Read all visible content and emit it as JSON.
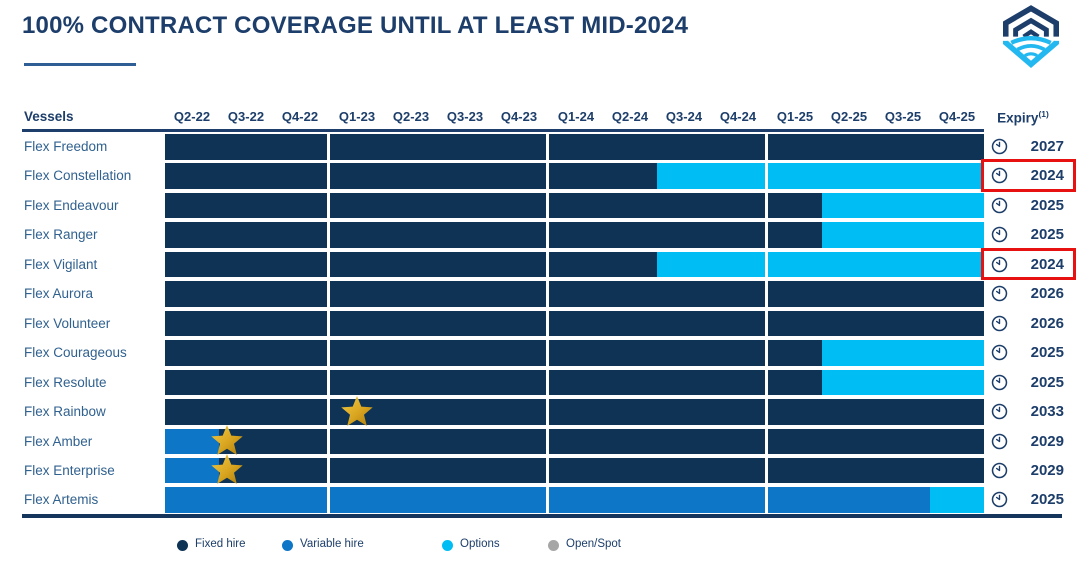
{
  "header": {
    "title": "100% CONTRACT COVERAGE UNTIL AT LEAST MID-2024"
  },
  "logo": {
    "name": "flex-lng-logo"
  },
  "table": {
    "vessels_header": "Vessels",
    "expiry_header": "Expiry",
    "expiry_superscript": "(1)",
    "quarters": [
      "Q2-22",
      "Q3-22",
      "Q4-22",
      "Q1-23",
      "Q2-23",
      "Q3-23",
      "Q4-23",
      "Q1-24",
      "Q2-24",
      "Q3-24",
      "Q4-24",
      "Q1-25",
      "Q2-25",
      "Q3-25",
      "Q4-25"
    ],
    "year_blocks": [
      3,
      4,
      4,
      4
    ]
  },
  "chart_data": {
    "type": "gantt",
    "title": "100% CONTRACT COVERAGE UNTIL AT LEAST MID-2024",
    "categories": [
      "Q2-22",
      "Q3-22",
      "Q4-22",
      "Q1-23",
      "Q2-23",
      "Q3-23",
      "Q4-23",
      "Q1-24",
      "Q2-24",
      "Q3-24",
      "Q4-24",
      "Q1-25",
      "Q2-25",
      "Q3-25",
      "Q4-25"
    ],
    "legend_entries": [
      "Fixed hire",
      "Variable hire",
      "Options",
      "Open/Spot"
    ],
    "rows": [
      {
        "vessel": "Flex Freedom",
        "segments": [
          {
            "type": "fixed",
            "quarters": 15
          }
        ],
        "expiry": "2027",
        "highlight": false,
        "stars": []
      },
      {
        "vessel": "Flex Constellation",
        "segments": [
          {
            "type": "fixed",
            "quarters": 9
          },
          {
            "type": "options",
            "quarters": 6
          }
        ],
        "expiry": "2024",
        "highlight": true,
        "stars": []
      },
      {
        "vessel": "Flex Endeavour",
        "segments": [
          {
            "type": "fixed",
            "quarters": 12
          },
          {
            "type": "options",
            "quarters": 3
          }
        ],
        "expiry": "2025",
        "highlight": false,
        "stars": []
      },
      {
        "vessel": "Flex Ranger",
        "segments": [
          {
            "type": "fixed",
            "quarters": 12
          },
          {
            "type": "options",
            "quarters": 3
          }
        ],
        "expiry": "2025",
        "highlight": false,
        "stars": []
      },
      {
        "vessel": "Flex Vigilant",
        "segments": [
          {
            "type": "fixed",
            "quarters": 9
          },
          {
            "type": "options",
            "quarters": 6
          }
        ],
        "expiry": "2024",
        "highlight": true,
        "stars": []
      },
      {
        "vessel": "Flex Aurora",
        "segments": [
          {
            "type": "fixed",
            "quarters": 15
          }
        ],
        "expiry": "2026",
        "highlight": false,
        "stars": []
      },
      {
        "vessel": "Flex Volunteer",
        "segments": [
          {
            "type": "fixed",
            "quarters": 15
          }
        ],
        "expiry": "2026",
        "highlight": false,
        "stars": []
      },
      {
        "vessel": "Flex Courageous",
        "segments": [
          {
            "type": "fixed",
            "quarters": 12
          },
          {
            "type": "options",
            "quarters": 3
          }
        ],
        "expiry": "2025",
        "highlight": false,
        "stars": []
      },
      {
        "vessel": "Flex Resolute",
        "segments": [
          {
            "type": "fixed",
            "quarters": 12
          },
          {
            "type": "options",
            "quarters": 3
          }
        ],
        "expiry": "2025",
        "highlight": false,
        "stars": []
      },
      {
        "vessel": "Flex Rainbow",
        "segments": [
          {
            "type": "fixed",
            "quarters": 15
          }
        ],
        "expiry": "2033",
        "highlight": false,
        "stars": [
          3.5
        ]
      },
      {
        "vessel": "Flex Amber",
        "segments": [
          {
            "type": "variable",
            "quarters": 1
          },
          {
            "type": "fixed",
            "quarters": 14
          }
        ],
        "expiry": "2029",
        "highlight": false,
        "stars": [
          1.15
        ]
      },
      {
        "vessel": "Flex Enterprise",
        "segments": [
          {
            "type": "variable",
            "quarters": 1
          },
          {
            "type": "fixed",
            "quarters": 14
          }
        ],
        "expiry": "2029",
        "highlight": false,
        "stars": [
          1.15
        ]
      },
      {
        "vessel": "Flex Artemis",
        "segments": [
          {
            "type": "variable",
            "quarters": 14
          },
          {
            "type": "options",
            "quarters": 1
          }
        ],
        "expiry": "2025",
        "highlight": false,
        "stars": []
      }
    ]
  },
  "legend": {
    "items": [
      {
        "label": "Fixed hire",
        "type": "fixed"
      },
      {
        "label": "Variable hire",
        "type": "variable"
      },
      {
        "label": "Options",
        "type": "options"
      },
      {
        "label": "Open/Spot",
        "type": "open_spot"
      }
    ]
  },
  "colors": {
    "fixed": "#0e3355",
    "variable": "#0d76c6",
    "options": "#00bef4",
    "open_spot": "#a6a6a6",
    "highlight_red": "#e81111",
    "text_navy": "#1d3e6a",
    "label_blue": "#30618f",
    "star_gold": "#d9a520"
  },
  "icons": {
    "expiry": "clock-icon",
    "milestone": "star-icon"
  }
}
